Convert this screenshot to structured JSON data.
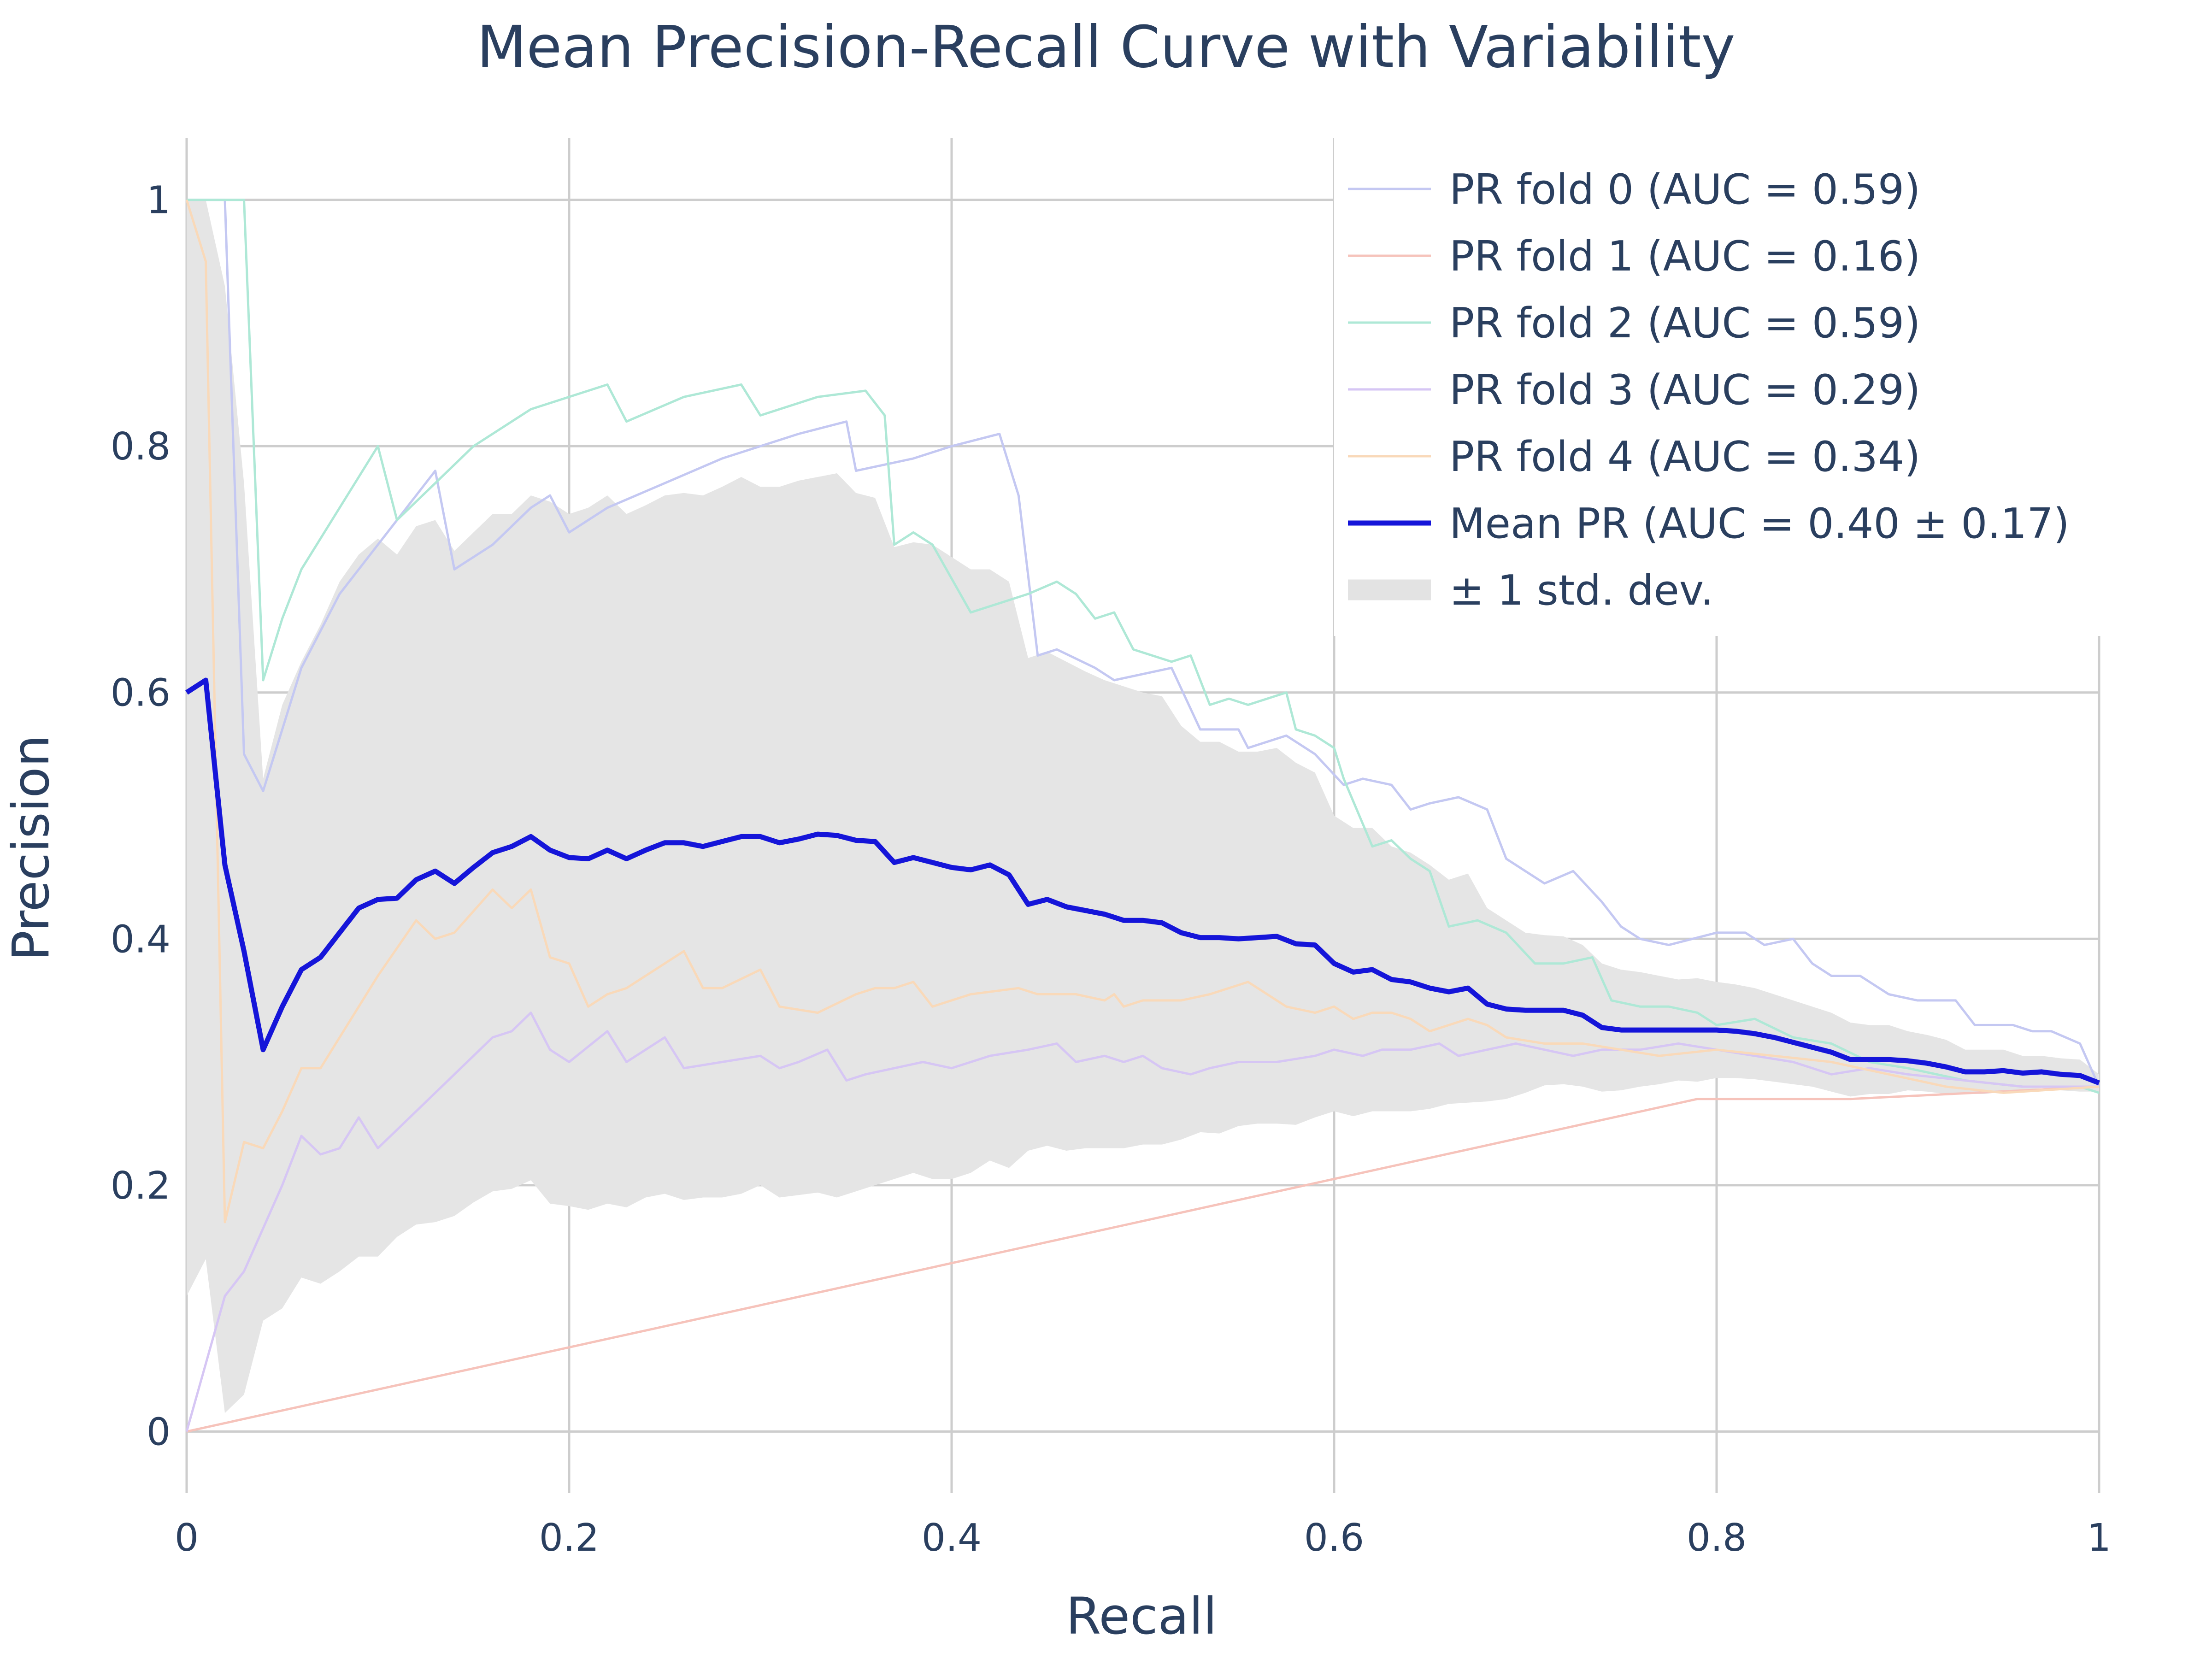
{
  "chart_data": {
    "type": "line",
    "title": "Mean Precision-Recall Curve with Variability",
    "xlabel": "Recall",
    "ylabel": "Precision",
    "xlim": [
      0,
      1
    ],
    "ylim": [
      -0.05,
      1.05
    ],
    "xticks": [
      0,
      0.2,
      0.4,
      0.6,
      0.8,
      1
    ],
    "xtick_labels": [
      "0",
      "0.2",
      "0.4",
      "0.6",
      "0.8",
      "1"
    ],
    "yticks": [
      0,
      0.2,
      0.4,
      0.6,
      0.8,
      1
    ],
    "ytick_labels": [
      "0",
      "0.2",
      "0.4",
      "0.6",
      "0.8",
      "1"
    ],
    "grid": true,
    "legend_position": "top-right",
    "series": [
      {
        "name": "PR fold 0 (AUC = 0.59)",
        "color": "#c4c8f2",
        "x": [
          0,
          0.02,
          0.03,
          0.04,
          0.05,
          0.06,
          0.08,
          0.1,
          0.12,
          0.13,
          0.14,
          0.16,
          0.18,
          0.19,
          0.2,
          0.22,
          0.25,
          0.28,
          0.3,
          0.32,
          0.345,
          0.35,
          0.38,
          0.4,
          0.425,
          0.435,
          0.445,
          0.455,
          0.475,
          0.485,
          0.515,
          0.53,
          0.55,
          0.555,
          0.575,
          0.59,
          0.605,
          0.615,
          0.63,
          0.64,
          0.65,
          0.665,
          0.68,
          0.69,
          0.71,
          0.725,
          0.74,
          0.75,
          0.76,
          0.775,
          0.8,
          0.815,
          0.825,
          0.84,
          0.85,
          0.86,
          0.875,
          0.89,
          0.905,
          0.925,
          0.935,
          0.955,
          0.965,
          0.975,
          0.99,
          1.0
        ],
        "y": [
          1.0,
          1.0,
          0.55,
          0.52,
          0.57,
          0.62,
          0.68,
          0.72,
          0.76,
          0.78,
          0.7,
          0.72,
          0.75,
          0.76,
          0.73,
          0.75,
          0.77,
          0.79,
          0.8,
          0.81,
          0.82,
          0.78,
          0.79,
          0.8,
          0.81,
          0.76,
          0.63,
          0.635,
          0.62,
          0.61,
          0.62,
          0.57,
          0.57,
          0.555,
          0.565,
          0.55,
          0.525,
          0.53,
          0.525,
          0.505,
          0.51,
          0.515,
          0.505,
          0.465,
          0.445,
          0.455,
          0.43,
          0.41,
          0.4,
          0.395,
          0.405,
          0.405,
          0.395,
          0.4,
          0.38,
          0.37,
          0.37,
          0.355,
          0.35,
          0.35,
          0.33,
          0.33,
          0.325,
          0.325,
          0.315,
          0.28
        ]
      },
      {
        "name": "PR fold 1 (AUC = 0.16)",
        "color": "#f6c3bb",
        "x": [
          0,
          0.79,
          0.87,
          1.0
        ],
        "y": [
          0,
          0.27,
          0.27,
          0.28
        ]
      },
      {
        "name": "PR fold 2 (AUC = 0.59)",
        "color": "#aee8d6",
        "x": [
          0,
          0.03,
          0.04,
          0.05,
          0.06,
          0.08,
          0.1,
          0.11,
          0.13,
          0.15,
          0.18,
          0.2,
          0.22,
          0.23,
          0.26,
          0.29,
          0.3,
          0.33,
          0.355,
          0.365,
          0.37,
          0.38,
          0.39,
          0.41,
          0.44,
          0.455,
          0.465,
          0.475,
          0.485,
          0.495,
          0.515,
          0.525,
          0.535,
          0.545,
          0.555,
          0.575,
          0.58,
          0.59,
          0.6,
          0.605,
          0.62,
          0.63,
          0.64,
          0.65,
          0.66,
          0.675,
          0.69,
          0.705,
          0.72,
          0.735,
          0.745,
          0.76,
          0.775,
          0.79,
          0.8,
          0.82,
          0.84,
          0.86,
          0.88,
          0.9,
          0.93,
          0.96,
          0.99,
          1.0
        ],
        "y": [
          1.0,
          1.0,
          0.61,
          0.66,
          0.7,
          0.75,
          0.8,
          0.74,
          0.77,
          0.8,
          0.83,
          0.84,
          0.85,
          0.82,
          0.84,
          0.85,
          0.825,
          0.84,
          0.845,
          0.825,
          0.72,
          0.73,
          0.72,
          0.665,
          0.68,
          0.69,
          0.68,
          0.66,
          0.665,
          0.635,
          0.625,
          0.63,
          0.59,
          0.595,
          0.59,
          0.6,
          0.57,
          0.565,
          0.555,
          0.53,
          0.475,
          0.48,
          0.465,
          0.455,
          0.41,
          0.415,
          0.405,
          0.38,
          0.38,
          0.385,
          0.35,
          0.345,
          0.345,
          0.34,
          0.33,
          0.335,
          0.32,
          0.315,
          0.3,
          0.295,
          0.285,
          0.28,
          0.28,
          0.275
        ]
      },
      {
        "name": "PR fold 3 (AUC = 0.29)",
        "color": "#d6c6f4",
        "x": [
          0,
          0.02,
          0.03,
          0.05,
          0.06,
          0.07,
          0.08,
          0.09,
          0.1,
          0.12,
          0.14,
          0.16,
          0.17,
          0.18,
          0.19,
          0.2,
          0.22,
          0.23,
          0.25,
          0.26,
          0.28,
          0.3,
          0.31,
          0.32,
          0.335,
          0.345,
          0.355,
          0.37,
          0.385,
          0.4,
          0.42,
          0.44,
          0.455,
          0.465,
          0.48,
          0.49,
          0.5,
          0.51,
          0.525,
          0.535,
          0.55,
          0.57,
          0.59,
          0.6,
          0.615,
          0.625,
          0.64,
          0.655,
          0.665,
          0.68,
          0.695,
          0.71,
          0.725,
          0.74,
          0.755,
          0.76,
          0.78,
          0.8,
          0.82,
          0.84,
          0.86,
          0.88,
          0.9,
          0.93,
          0.96,
          1.0
        ],
        "y": [
          0,
          0.11,
          0.13,
          0.2,
          0.24,
          0.225,
          0.23,
          0.255,
          0.23,
          0.26,
          0.29,
          0.32,
          0.325,
          0.34,
          0.31,
          0.3,
          0.325,
          0.3,
          0.32,
          0.295,
          0.3,
          0.305,
          0.295,
          0.3,
          0.31,
          0.285,
          0.29,
          0.295,
          0.3,
          0.295,
          0.305,
          0.31,
          0.315,
          0.3,
          0.305,
          0.3,
          0.305,
          0.295,
          0.29,
          0.295,
          0.3,
          0.3,
          0.305,
          0.31,
          0.305,
          0.31,
          0.31,
          0.315,
          0.305,
          0.31,
          0.315,
          0.31,
          0.305,
          0.31,
          0.31,
          0.31,
          0.315,
          0.31,
          0.305,
          0.3,
          0.29,
          0.295,
          0.29,
          0.285,
          0.28,
          0.28
        ]
      },
      {
        "name": "PR fold 4 (AUC = 0.34)",
        "color": "#f9d9b9",
        "x": [
          0,
          0.01,
          0.02,
          0.03,
          0.04,
          0.05,
          0.06,
          0.07,
          0.08,
          0.1,
          0.12,
          0.13,
          0.14,
          0.16,
          0.17,
          0.18,
          0.19,
          0.2,
          0.21,
          0.22,
          0.23,
          0.26,
          0.27,
          0.28,
          0.3,
          0.31,
          0.33,
          0.35,
          0.36,
          0.37,
          0.38,
          0.39,
          0.41,
          0.435,
          0.445,
          0.465,
          0.48,
          0.485,
          0.49,
          0.5,
          0.52,
          0.535,
          0.555,
          0.565,
          0.575,
          0.59,
          0.6,
          0.61,
          0.62,
          0.63,
          0.64,
          0.65,
          0.67,
          0.68,
          0.69,
          0.71,
          0.73,
          0.75,
          0.77,
          0.8,
          0.83,
          0.86,
          0.89,
          0.92,
          0.95,
          1.0
        ],
        "y": [
          1.0,
          0.95,
          0.17,
          0.235,
          0.23,
          0.26,
          0.295,
          0.295,
          0.32,
          0.37,
          0.415,
          0.4,
          0.405,
          0.44,
          0.425,
          0.44,
          0.385,
          0.38,
          0.345,
          0.355,
          0.36,
          0.39,
          0.36,
          0.36,
          0.375,
          0.345,
          0.34,
          0.355,
          0.36,
          0.36,
          0.365,
          0.345,
          0.355,
          0.36,
          0.355,
          0.355,
          0.35,
          0.355,
          0.345,
          0.35,
          0.35,
          0.355,
          0.365,
          0.355,
          0.345,
          0.34,
          0.345,
          0.335,
          0.34,
          0.34,
          0.335,
          0.325,
          0.335,
          0.33,
          0.32,
          0.315,
          0.315,
          0.31,
          0.305,
          0.31,
          0.305,
          0.3,
          0.29,
          0.28,
          0.275,
          0.28
        ]
      },
      {
        "name": "Mean PR (AUC = 0.40 ± 0.17)",
        "color": "#1515d9",
        "x": [
          0,
          0.01,
          0.02,
          0.03,
          0.04,
          0.05,
          0.06,
          0.07,
          0.08,
          0.09,
          0.1,
          0.11,
          0.12,
          0.13,
          0.14,
          0.15,
          0.16,
          0.17,
          0.18,
          0.19,
          0.2,
          0.21,
          0.22,
          0.23,
          0.24,
          0.25,
          0.26,
          0.27,
          0.28,
          0.29,
          0.3,
          0.31,
          0.32,
          0.33,
          0.34,
          0.35,
          0.36,
          0.37,
          0.38,
          0.39,
          0.4,
          0.41,
          0.42,
          0.43,
          0.44,
          0.45,
          0.46,
          0.47,
          0.48,
          0.49,
          0.5,
          0.51,
          0.52,
          0.53,
          0.54,
          0.55,
          0.56,
          0.57,
          0.58,
          0.59,
          0.6,
          0.61,
          0.62,
          0.63,
          0.64,
          0.65,
          0.66,
          0.67,
          0.68,
          0.69,
          0.7,
          0.71,
          0.72,
          0.73,
          0.74,
          0.75,
          0.76,
          0.77,
          0.78,
          0.79,
          0.8,
          0.81,
          0.82,
          0.83,
          0.84,
          0.85,
          0.86,
          0.87,
          0.88,
          0.89,
          0.9,
          0.91,
          0.92,
          0.93,
          0.94,
          0.95,
          0.96,
          0.97,
          0.98,
          0.99,
          1.0
        ],
        "y": [
          0.6,
          0.61,
          0.46,
          0.39,
          0.31,
          0.345,
          0.375,
          0.385,
          0.405,
          0.425,
          0.432,
          0.433,
          0.448,
          0.455,
          0.445,
          0.458,
          0.47,
          0.475,
          0.483,
          0.472,
          0.466,
          0.465,
          0.472,
          0.465,
          0.472,
          0.478,
          0.478,
          0.475,
          0.479,
          0.483,
          0.483,
          0.478,
          0.481,
          0.485,
          0.484,
          0.48,
          0.479,
          0.462,
          0.466,
          0.462,
          0.458,
          0.456,
          0.46,
          0.452,
          0.428,
          0.432,
          0.426,
          0.423,
          0.42,
          0.415,
          0.415,
          0.413,
          0.405,
          0.401,
          0.401,
          0.4,
          0.401,
          0.402,
          0.396,
          0.395,
          0.38,
          0.373,
          0.375,
          0.367,
          0.365,
          0.36,
          0.357,
          0.36,
          0.347,
          0.343,
          0.342,
          0.342,
          0.342,
          0.338,
          0.328,
          0.326,
          0.326,
          0.326,
          0.326,
          0.326,
          0.326,
          0.325,
          0.323,
          0.32,
          0.316,
          0.312,
          0.308,
          0.302,
          0.302,
          0.302,
          0.301,
          0.299,
          0.296,
          0.292,
          0.292,
          0.293,
          0.291,
          0.292,
          0.29,
          0.289,
          0.283
        ]
      }
    ],
    "band": {
      "name": "± 1 std. dev.",
      "color": "#e5e5e5",
      "x": [
        0,
        0.01,
        0.02,
        0.03,
        0.04,
        0.05,
        0.06,
        0.07,
        0.08,
        0.09,
        0.1,
        0.11,
        0.12,
        0.13,
        0.14,
        0.15,
        0.16,
        0.17,
        0.18,
        0.19,
        0.2,
        0.21,
        0.22,
        0.23,
        0.24,
        0.25,
        0.26,
        0.27,
        0.28,
        0.29,
        0.3,
        0.31,
        0.32,
        0.33,
        0.34,
        0.35,
        0.36,
        0.37,
        0.38,
        0.39,
        0.4,
        0.41,
        0.42,
        0.43,
        0.44,
        0.45,
        0.46,
        0.47,
        0.48,
        0.49,
        0.5,
        0.51,
        0.52,
        0.53,
        0.54,
        0.55,
        0.56,
        0.57,
        0.58,
        0.59,
        0.6,
        0.61,
        0.62,
        0.63,
        0.64,
        0.65,
        0.66,
        0.67,
        0.68,
        0.69,
        0.7,
        0.71,
        0.72,
        0.73,
        0.74,
        0.75,
        0.76,
        0.77,
        0.78,
        0.79,
        0.8,
        0.81,
        0.82,
        0.83,
        0.84,
        0.85,
        0.86,
        0.87,
        0.88,
        0.89,
        0.9,
        0.91,
        0.92,
        0.93,
        0.94,
        0.95,
        0.96,
        0.97,
        0.98,
        0.99,
        1.0
      ],
      "upper": [
        1.0,
        1.0,
        0.93,
        0.77,
        0.53,
        0.59,
        0.625,
        0.655,
        0.69,
        0.712,
        0.725,
        0.712,
        0.735,
        0.74,
        0.715,
        0.73,
        0.745,
        0.745,
        0.76,
        0.755,
        0.745,
        0.75,
        0.76,
        0.745,
        0.752,
        0.76,
        0.762,
        0.76,
        0.767,
        0.775,
        0.767,
        0.767,
        0.772,
        0.775,
        0.778,
        0.762,
        0.758,
        0.718,
        0.722,
        0.72,
        0.71,
        0.7,
        0.7,
        0.69,
        0.628,
        0.633,
        0.625,
        0.617,
        0.61,
        0.605,
        0.6,
        0.597,
        0.573,
        0.56,
        0.56,
        0.552,
        0.552,
        0.555,
        0.543,
        0.535,
        0.5,
        0.49,
        0.49,
        0.475,
        0.47,
        0.46,
        0.448,
        0.453,
        0.425,
        0.415,
        0.405,
        0.403,
        0.402,
        0.395,
        0.38,
        0.375,
        0.373,
        0.37,
        0.367,
        0.368,
        0.365,
        0.363,
        0.36,
        0.355,
        0.35,
        0.345,
        0.34,
        0.332,
        0.33,
        0.33,
        0.325,
        0.322,
        0.318,
        0.31,
        0.31,
        0.31,
        0.305,
        0.305,
        0.303,
        0.302,
        0.29
      ],
      "lower": [
        0.11,
        0.14,
        0.015,
        0.03,
        0.09,
        0.1,
        0.125,
        0.12,
        0.13,
        0.142,
        0.142,
        0.158,
        0.168,
        0.17,
        0.175,
        0.186,
        0.195,
        0.197,
        0.204,
        0.185,
        0.183,
        0.18,
        0.185,
        0.182,
        0.19,
        0.193,
        0.188,
        0.19,
        0.19,
        0.193,
        0.2,
        0.19,
        0.192,
        0.194,
        0.19,
        0.195,
        0.2,
        0.205,
        0.21,
        0.205,
        0.205,
        0.21,
        0.22,
        0.214,
        0.228,
        0.232,
        0.228,
        0.23,
        0.23,
        0.23,
        0.233,
        0.233,
        0.237,
        0.243,
        0.242,
        0.248,
        0.25,
        0.25,
        0.249,
        0.255,
        0.26,
        0.256,
        0.26,
        0.26,
        0.26,
        0.262,
        0.266,
        0.267,
        0.268,
        0.27,
        0.275,
        0.281,
        0.282,
        0.28,
        0.276,
        0.277,
        0.28,
        0.282,
        0.285,
        0.284,
        0.287,
        0.287,
        0.286,
        0.284,
        0.282,
        0.28,
        0.276,
        0.272,
        0.274,
        0.274,
        0.277,
        0.276,
        0.274,
        0.274,
        0.274,
        0.276,
        0.277,
        0.279,
        0.277,
        0.276,
        0.276
      ]
    }
  }
}
